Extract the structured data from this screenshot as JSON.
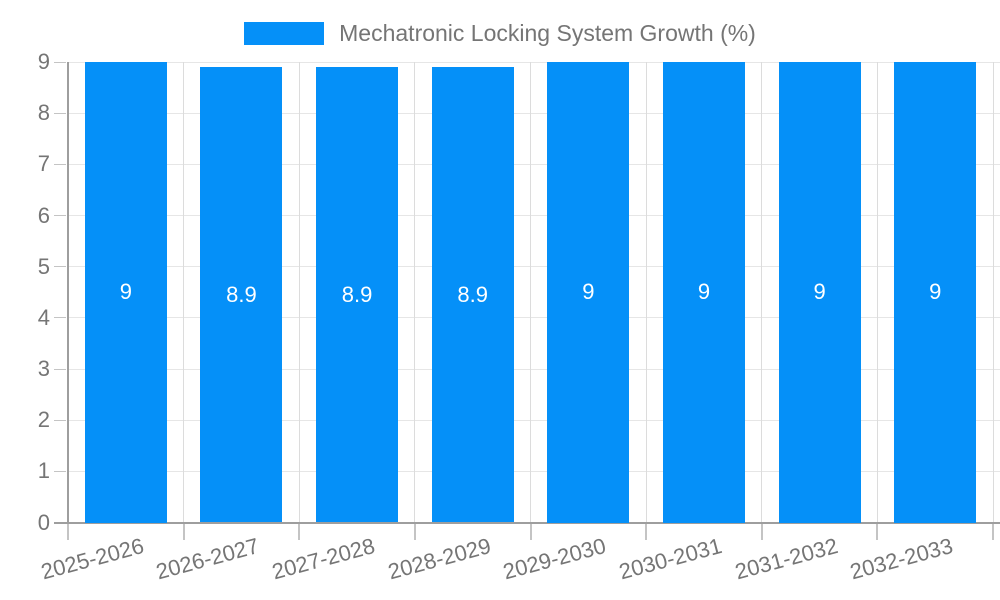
{
  "legend": {
    "label": "Mechatronic Locking System Growth (%)",
    "swatch_color": "#0590F8"
  },
  "chart_data": {
    "type": "bar",
    "title": "Mechatronic Locking System Growth (%)",
    "categories": [
      "2025-2026",
      "2026-2027",
      "2027-2028",
      "2028-2029",
      "2029-2030",
      "2030-2031",
      "2031-2032",
      "2032-2033"
    ],
    "series": [
      {
        "name": "Mechatronic Locking System Growth (%)",
        "values": [
          9,
          8.9,
          8.9,
          8.9,
          9,
          9,
          9,
          9
        ],
        "labels": [
          "9",
          "8.9",
          "8.9",
          "8.9",
          "9",
          "9",
          "9",
          "9"
        ],
        "color": "#0590F8"
      }
    ],
    "xlabel": "",
    "ylabel": "",
    "ylim": [
      0,
      9
    ],
    "y_ticks": [
      0,
      1,
      2,
      3,
      4,
      5,
      6,
      7,
      8,
      9
    ],
    "grid": true,
    "legend_position": "top",
    "x_label_rotation_deg": -15,
    "style": {
      "bar_label_color": "#ffffff",
      "axis_color": "#9e9e9e",
      "h_grid_color": "#e6e6e6",
      "v_grid_color": "#dcdcdc",
      "tick_mark_color": "#c4c4c4",
      "tick_label_color": "#757575",
      "background": "#ffffff"
    }
  }
}
